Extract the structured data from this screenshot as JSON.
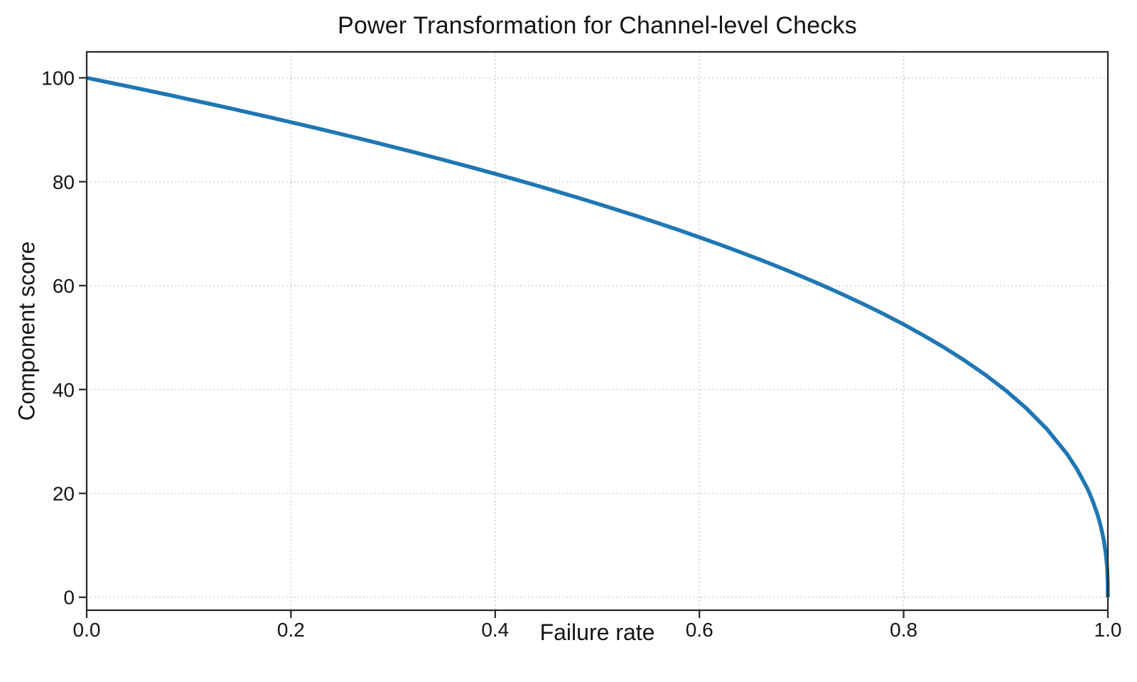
{
  "chart_data": {
    "type": "line",
    "title": "Power Transformation for Channel-level Checks",
    "xlabel": "Failure rate",
    "ylabel": "Component score",
    "xlim": [
      0,
      1
    ],
    "ylim": [
      -2.5,
      105
    ],
    "xticks": [
      0,
      0.2,
      0.4,
      0.6,
      0.8,
      1.0
    ],
    "xtick_labels": [
      "0.0",
      "0.2",
      "0.4",
      "0.6",
      "0.8",
      "1.0"
    ],
    "yticks": [
      0,
      20,
      40,
      60,
      80,
      100
    ],
    "ytick_labels": [
      "0",
      "20",
      "40",
      "60",
      "80",
      "100"
    ],
    "grid": "dotted major gridlines, both axes",
    "legend": "none",
    "series": [
      {
        "name": "Component score vs Failure rate",
        "color": "#1f77b4",
        "x": [
          0,
          0.02,
          0.04,
          0.06,
          0.08,
          0.1,
          0.12,
          0.14,
          0.16,
          0.18,
          0.2,
          0.22,
          0.24,
          0.26,
          0.28,
          0.3,
          0.32,
          0.34,
          0.36,
          0.38,
          0.4,
          0.42,
          0.44,
          0.46,
          0.48,
          0.5,
          0.52,
          0.54,
          0.56,
          0.58,
          0.6,
          0.62,
          0.64,
          0.66,
          0.68,
          0.7,
          0.72,
          0.74,
          0.76,
          0.78,
          0.8,
          0.82,
          0.84,
          0.86,
          0.88,
          0.9,
          0.92,
          0.94,
          0.96,
          0.97,
          0.98,
          0.985,
          0.99,
          0.993,
          0.996,
          0.998,
          0.999,
          0.9995,
          0.9999,
          1.0
        ],
        "y": [
          100,
          99.19,
          98.38,
          97.56,
          96.72,
          95.87,
          95.01,
          94.15,
          93.26,
          92.37,
          91.46,
          90.54,
          89.6,
          88.65,
          87.69,
          86.7,
          85.7,
          84.69,
          83.65,
          82.6,
          81.52,
          80.42,
          79.3,
          78.15,
          76.98,
          75.79,
          74.56,
          73.3,
          72.01,
          70.68,
          69.31,
          67.91,
          66.45,
          64.95,
          63.4,
          61.78,
          60.1,
          58.34,
          56.5,
          54.57,
          52.53,
          50.36,
          48.05,
          45.55,
          42.82,
          39.81,
          36.41,
          32.45,
          27.59,
          24.6,
          20.91,
          18.64,
          15.85,
          13.74,
          10.99,
          8.33,
          6.31,
          4.78,
          2.51,
          0
        ]
      }
    ]
  },
  "style": {
    "line_color": "#1f77b4",
    "grid_color": "#c8c8c8",
    "spine_color": "#262626",
    "tick_color": "#262626",
    "text_color": "#151515",
    "background": "#ffffff"
  }
}
